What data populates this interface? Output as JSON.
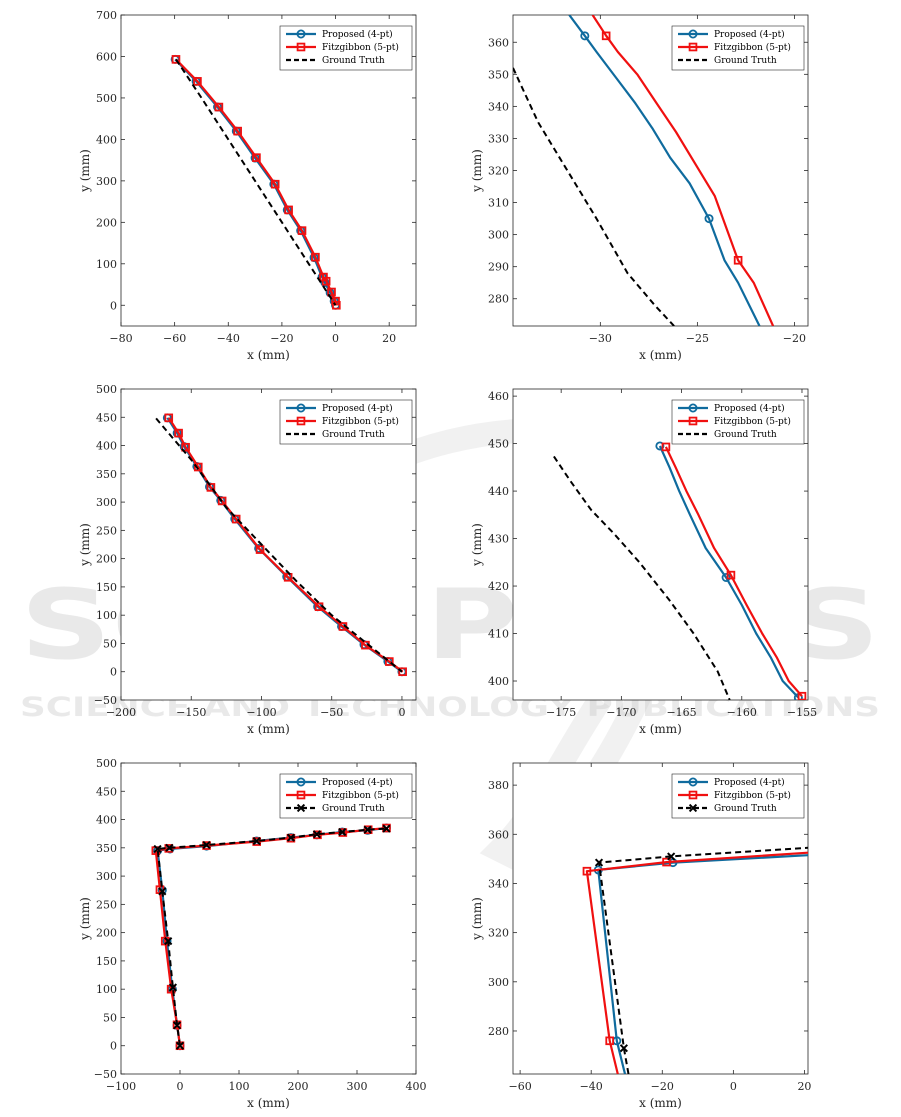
{
  "watermark": {
    "title": "SCITEPRESS",
    "subtitle": "SCIENCE AND TECHNOLOGY PUBLICATIONS"
  },
  "colors": {
    "proposed": "#0F6B9E",
    "fitzgibbon": "#F01010",
    "ground_truth": "#000000"
  },
  "legend_labels": [
    "Proposed (4-pt)",
    "Fitzgibbon (5-pt)",
    "Ground Truth"
  ],
  "chart_data": [
    {
      "type": "line",
      "panel": "row1-full",
      "xlabel": "x (mm)",
      "ylabel": "y (mm)",
      "xlim": [
        -80,
        30
      ],
      "ylim": [
        -50,
        700
      ],
      "xticks": [
        -80,
        -60,
        -40,
        -20,
        0,
        20
      ],
      "yticks": [
        0,
        100,
        200,
        300,
        400,
        500,
        600,
        700
      ],
      "legend": "top-right",
      "series": [
        {
          "name": "Proposed (4-pt)",
          "marker": "circle",
          "x": [
            -59.8,
            -52,
            -44,
            -37,
            -30,
            -23,
            -18,
            -13,
            -8,
            -5,
            -4,
            -2,
            -0.5,
            0
          ],
          "y": [
            593,
            540,
            478,
            420,
            355,
            292,
            230,
            180,
            115,
            68,
            55,
            30,
            10,
            0
          ]
        },
        {
          "name": "Fitzgibbon (5-pt)",
          "marker": "square",
          "x": [
            -59.5,
            -51.5,
            -43.5,
            -36.5,
            -29.5,
            -22.5,
            -17.5,
            -12.5,
            -7.5,
            -4.5,
            -3.5,
            -1.5,
            0,
            0.3
          ],
          "y": [
            593,
            540,
            478,
            420,
            356,
            292,
            230,
            180,
            116,
            68,
            58,
            32,
            10,
            0
          ]
        },
        {
          "name": "Ground Truth",
          "marker": "none",
          "x": [
            -59.5,
            -50,
            -40,
            -30,
            -20,
            -10,
            -2,
            0
          ],
          "y": [
            593,
            500,
            400,
            300,
            200,
            100,
            20,
            0
          ]
        }
      ]
    },
    {
      "type": "line",
      "panel": "row1-zoom",
      "xlabel": "x (mm)",
      "ylabel": "y (mm)",
      "xlim": [
        -34.5,
        -19.3
      ],
      "ylim": [
        271.5,
        368.5
      ],
      "xticks": [
        -30,
        -25,
        -20
      ],
      "yticks": [
        280,
        290,
        300,
        310,
        320,
        330,
        340,
        350,
        360
      ],
      "legend": "top-right",
      "series": [
        {
          "name": "Proposed (4-pt)",
          "marker": "circle",
          "marker_at": [
            1,
            8
          ],
          "x": [
            -31.6,
            -30.8,
            -30.2,
            -29.2,
            -28.2,
            -27.3,
            -26.4,
            -25.4,
            -24.4,
            -23.6,
            -22.9,
            -21.8
          ],
          "y": [
            368.5,
            362,
            357,
            349,
            341,
            333,
            324,
            316,
            305,
            292,
            285,
            271.5
          ]
        },
        {
          "name": "Fitzgibbon (5-pt)",
          "marker": "square",
          "marker_at": [
            1,
            8
          ],
          "x": [
            -30.4,
            -29.7,
            -29.1,
            -28.1,
            -27.1,
            -26.1,
            -25.1,
            -24.1,
            -22.9,
            -22.1,
            -21.1
          ],
          "y": [
            368.5,
            362,
            357,
            350,
            341,
            332,
            322,
            312,
            292,
            285,
            271.5
          ]
        },
        {
          "name": "Ground Truth",
          "marker": "none",
          "x": [
            -34.5,
            -33.2,
            -31.8,
            -30.2,
            -28.6,
            -27.2,
            -26.2
          ],
          "y": [
            352,
            335,
            321,
            305,
            288,
            278,
            271.5
          ]
        }
      ]
    },
    {
      "type": "line",
      "panel": "row2-full",
      "xlabel": "x (mm)",
      "ylabel": "y (mm)",
      "xlim": [
        -200,
        10
      ],
      "ylim": [
        -50,
        500
      ],
      "xticks": [
        -200,
        -150,
        -100,
        -50,
        0
      ],
      "yticks": [
        -50,
        0,
        50,
        100,
        150,
        200,
        250,
        300,
        350,
        400,
        450,
        500
      ],
      "legend": "top-right",
      "series": [
        {
          "name": "Proposed (4-pt)",
          "marker": "circle",
          "x": [
            -167,
            -160,
            -155,
            -146,
            -137,
            -129,
            -119,
            -102,
            -82,
            -60,
            -43,
            -27,
            -10,
            0
          ],
          "y": [
            449,
            422,
            398,
            363,
            327,
            303,
            270,
            218,
            168,
            115,
            80,
            48,
            18,
            0
          ]
        },
        {
          "name": "Fitzgibbon (5-pt)",
          "marker": "square",
          "x": [
            -166,
            -159,
            -154,
            -145,
            -136,
            -128,
            -118,
            -101,
            -81,
            -59,
            -42,
            -26,
            -9,
            0.5
          ],
          "y": [
            449,
            422,
            397,
            362,
            326,
            302,
            270,
            216,
            167,
            115,
            80,
            47,
            18,
            0
          ]
        },
        {
          "name": "Ground Truth",
          "marker": "none",
          "x": [
            -175,
            -150,
            -125,
            -100,
            -75,
            -50,
            -25,
            0
          ],
          "y": [
            448,
            375,
            290,
            225,
            160,
            100,
            50,
            0
          ]
        }
      ]
    },
    {
      "type": "line",
      "panel": "row2-zoom",
      "xlabel": "x (mm)",
      "ylabel": "y (mm)",
      "xlim": [
        -179,
        -154.5
      ],
      "ylim": [
        396,
        461.5
      ],
      "xticks": [
        -175,
        -170,
        -165,
        -160,
        -155
      ],
      "yticks": [
        400,
        410,
        420,
        430,
        440,
        450,
        460
      ],
      "legend": "top-right",
      "series": [
        {
          "name": "Proposed (4-pt)",
          "marker": "circle",
          "marker_at": [
            0,
            5,
            10
          ],
          "x": [
            -166.8,
            -166.0,
            -165.2,
            -164.3,
            -163.0,
            -161.3,
            -160.0,
            -158.8,
            -157.6,
            -156.6,
            -155.3
          ],
          "y": [
            449.5,
            445,
            440,
            435,
            428,
            421.8,
            416,
            410,
            405,
            400,
            396.5
          ]
        },
        {
          "name": "Fitzgibbon (5-pt)",
          "marker": "square",
          "marker_at": [
            0,
            5,
            10
          ],
          "x": [
            -166.3,
            -165.5,
            -164.6,
            -163.6,
            -162.3,
            -160.9,
            -159.6,
            -158.3,
            -157.1,
            -156.1,
            -155.0
          ],
          "y": [
            449.3,
            445,
            440,
            435,
            428,
            422.3,
            416,
            410,
            405,
            400,
            396.8
          ]
        },
        {
          "name": "Ground Truth",
          "marker": "none",
          "x": [
            -175.6,
            -174.2,
            -172.5,
            -170.6,
            -168.5,
            -166.0,
            -164.0,
            -162.0,
            -161.0
          ],
          "y": [
            447.3,
            442,
            436,
            431,
            425,
            417,
            410,
            402,
            396
          ]
        }
      ]
    },
    {
      "type": "line",
      "panel": "row3-full",
      "xlabel": "x (mm)",
      "ylabel": "y (mm)",
      "xlim": [
        -100,
        400
      ],
      "ylim": [
        -50,
        500
      ],
      "xticks": [
        -100,
        0,
        100,
        200,
        300,
        400
      ],
      "yticks": [
        -50,
        0,
        50,
        100,
        150,
        200,
        250,
        300,
        350,
        400,
        450,
        500
      ],
      "legend": "top-right",
      "series": [
        {
          "name": "Proposed (4-pt)",
          "marker": "circle",
          "x": [
            0,
            -5,
            -13,
            -22,
            -30,
            -38,
            -17,
            45,
            130,
            188,
            232,
            275,
            318,
            350
          ],
          "y": [
            0,
            36,
            100,
            185,
            275,
            345,
            348,
            353,
            362,
            368,
            373,
            378,
            381,
            385
          ]
        },
        {
          "name": "Fitzgibbon (5-pt)",
          "marker": "square",
          "x": [
            0,
            -5,
            -15,
            -25,
            -34,
            -41,
            -19,
            45,
            130,
            188,
            233,
            276,
            319,
            350
          ],
          "y": [
            0,
            37,
            100,
            185,
            276,
            345,
            349,
            354,
            361,
            367,
            373,
            377,
            382,
            385
          ]
        },
        {
          "name": "Ground Truth",
          "marker": "cross",
          "x": [
            0,
            -5,
            -12,
            -20,
            -30,
            -38,
            -18,
            45,
            130,
            188,
            232,
            275,
            318,
            350
          ],
          "y": [
            0,
            36,
            103,
            185,
            273,
            348,
            350,
            355,
            362,
            368,
            374,
            378,
            382,
            384
          ]
        }
      ]
    },
    {
      "type": "line",
      "panel": "row3-zoom",
      "xlabel": "x (mm)",
      "ylabel": "y (mm)",
      "xlim": [
        -62,
        21
      ],
      "ylim": [
        262.5,
        389
      ],
      "xticks": [
        -60,
        -40,
        -20,
        0,
        20
      ],
      "yticks": [
        280,
        300,
        320,
        340,
        360,
        380
      ],
      "legend": "top-right",
      "series": [
        {
          "name": "Proposed (4-pt)",
          "marker": "circle",
          "marker_at": [
            1,
            2,
            3
          ],
          "x": [
            -30.5,
            -32.8,
            -38.0,
            -17.0,
            21
          ],
          "y": [
            262.5,
            276,
            345.5,
            348.5,
            351.5
          ]
        },
        {
          "name": "Fitzgibbon (5-pt)",
          "marker": "square",
          "marker_at": [
            1,
            2,
            3
          ],
          "x": [
            -32.5,
            -34.8,
            -41.2,
            -18.8,
            21
          ],
          "y": [
            262.5,
            276,
            345,
            348.7,
            352.5
          ]
        },
        {
          "name": "Ground Truth",
          "marker": "cross",
          "marker_at": [
            1,
            2,
            3
          ],
          "x": [
            -29.5,
            -30.8,
            -37.8,
            -17.5,
            21
          ],
          "y": [
            262.5,
            273,
            348.5,
            351,
            354.5
          ]
        }
      ]
    }
  ]
}
